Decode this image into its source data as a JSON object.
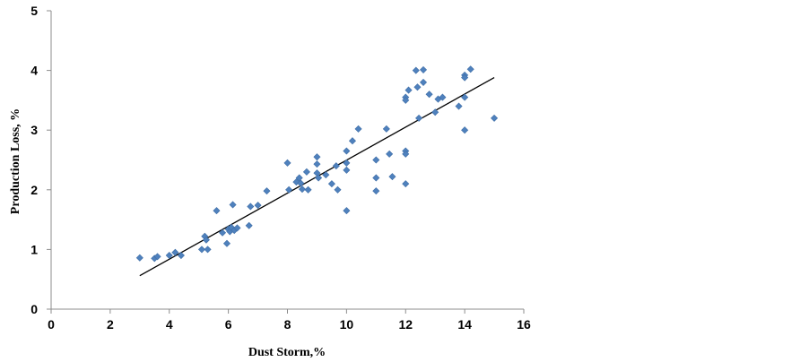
{
  "chart_data": {
    "type": "scatter",
    "xlabel": "Dust Storm,%",
    "ylabel": "Production Loss, %",
    "xlim": [
      0,
      16
    ],
    "ylim": [
      0,
      5
    ],
    "x_ticks": [
      0,
      2,
      4,
      6,
      8,
      10,
      12,
      14,
      16
    ],
    "y_ticks": [
      0,
      1,
      2,
      3,
      4,
      5
    ],
    "grid": false,
    "legend": "none",
    "marker_color": "#4F81BD",
    "trendline_color": "#000000",
    "trendline": {
      "x": [
        3,
        15
      ],
      "y": [
        0.56,
        3.88
      ]
    },
    "points": [
      {
        "x": 3.0,
        "y": 0.86
      },
      {
        "x": 3.5,
        "y": 0.85
      },
      {
        "x": 3.6,
        "y": 0.88
      },
      {
        "x": 4.0,
        "y": 0.9
      },
      {
        "x": 4.2,
        "y": 0.95
      },
      {
        "x": 4.4,
        "y": 0.9
      },
      {
        "x": 5.1,
        "y": 1.0
      },
      {
        "x": 5.2,
        "y": 1.22
      },
      {
        "x": 5.25,
        "y": 1.16
      },
      {
        "x": 5.3,
        "y": 1.0
      },
      {
        "x": 5.6,
        "y": 1.65
      },
      {
        "x": 5.8,
        "y": 1.28
      },
      {
        "x": 5.95,
        "y": 1.1
      },
      {
        "x": 6.0,
        "y": 1.34
      },
      {
        "x": 6.05,
        "y": 1.3
      },
      {
        "x": 6.1,
        "y": 1.37
      },
      {
        "x": 6.15,
        "y": 1.75
      },
      {
        "x": 6.2,
        "y": 1.32
      },
      {
        "x": 6.3,
        "y": 1.36
      },
      {
        "x": 6.7,
        "y": 1.4
      },
      {
        "x": 6.75,
        "y": 1.72
      },
      {
        "x": 7.0,
        "y": 1.74
      },
      {
        "x": 7.3,
        "y": 1.98
      },
      {
        "x": 8.0,
        "y": 2.45
      },
      {
        "x": 8.05,
        "y": 2.0
      },
      {
        "x": 8.3,
        "y": 2.13
      },
      {
        "x": 8.4,
        "y": 2.2
      },
      {
        "x": 8.45,
        "y": 2.11
      },
      {
        "x": 8.5,
        "y": 2.01
      },
      {
        "x": 8.65,
        "y": 2.3
      },
      {
        "x": 8.7,
        "y": 2.0
      },
      {
        "x": 9.0,
        "y": 2.55
      },
      {
        "x": 9.0,
        "y": 2.43
      },
      {
        "x": 9.0,
        "y": 2.28
      },
      {
        "x": 9.05,
        "y": 2.2
      },
      {
        "x": 9.3,
        "y": 2.25
      },
      {
        "x": 9.5,
        "y": 2.1
      },
      {
        "x": 9.65,
        "y": 2.4
      },
      {
        "x": 9.7,
        "y": 2.0
      },
      {
        "x": 10.0,
        "y": 2.65
      },
      {
        "x": 10.0,
        "y": 2.45
      },
      {
        "x": 10.0,
        "y": 2.33
      },
      {
        "x": 10.0,
        "y": 1.65
      },
      {
        "x": 10.2,
        "y": 2.82
      },
      {
        "x": 10.4,
        "y": 3.02
      },
      {
        "x": 11.0,
        "y": 2.5
      },
      {
        "x": 11.0,
        "y": 2.2
      },
      {
        "x": 11.0,
        "y": 1.98
      },
      {
        "x": 11.35,
        "y": 3.02
      },
      {
        "x": 11.45,
        "y": 2.6
      },
      {
        "x": 11.55,
        "y": 2.22
      },
      {
        "x": 12.0,
        "y": 3.55
      },
      {
        "x": 12.0,
        "y": 3.5
      },
      {
        "x": 12.0,
        "y": 2.65
      },
      {
        "x": 12.0,
        "y": 2.6
      },
      {
        "x": 12.0,
        "y": 2.1
      },
      {
        "x": 12.1,
        "y": 3.67
      },
      {
        "x": 12.35,
        "y": 4.0
      },
      {
        "x": 12.4,
        "y": 3.72
      },
      {
        "x": 12.45,
        "y": 3.2
      },
      {
        "x": 12.6,
        "y": 4.01
      },
      {
        "x": 12.6,
        "y": 3.8
      },
      {
        "x": 12.8,
        "y": 3.6
      },
      {
        "x": 13.0,
        "y": 3.3
      },
      {
        "x": 13.1,
        "y": 3.52
      },
      {
        "x": 13.25,
        "y": 3.55
      },
      {
        "x": 13.8,
        "y": 3.4
      },
      {
        "x": 14.0,
        "y": 3.92
      },
      {
        "x": 14.0,
        "y": 3.88
      },
      {
        "x": 14.0,
        "y": 3.55
      },
      {
        "x": 14.0,
        "y": 3.0
      },
      {
        "x": 14.2,
        "y": 4.02
      },
      {
        "x": 15.0,
        "y": 3.2
      }
    ]
  }
}
